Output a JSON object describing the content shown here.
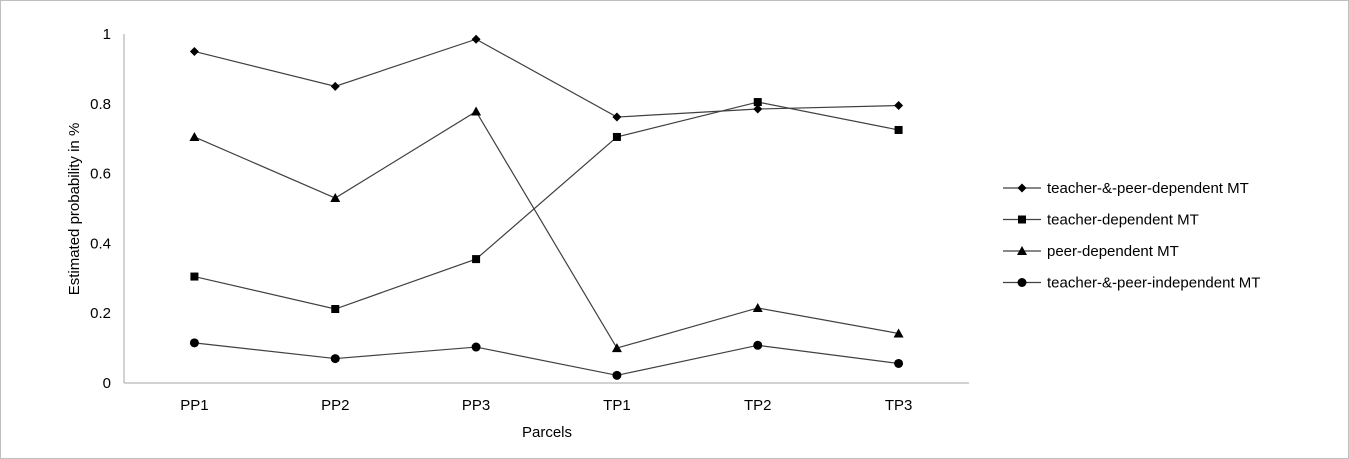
{
  "chart_data": {
    "type": "line",
    "title": "",
    "xlabel": "Parcels",
    "ylabel": "Estimated probability in %",
    "categories": [
      "PP1",
      "PP2",
      "PP3",
      "TP1",
      "TP2",
      "TP3"
    ],
    "ylim": [
      0,
      1
    ],
    "yticks": [
      "0",
      "0.2",
      "0.4",
      "0.6",
      "0.8",
      "1"
    ],
    "grid": false,
    "legend_position": "right",
    "line_color": "#404040",
    "marker_color": "#000000",
    "series": [
      {
        "name": "teacher-&-peer-dependent MT",
        "marker": "diamond",
        "values": [
          0.95,
          0.85,
          0.985,
          0.762,
          0.785,
          0.795
        ]
      },
      {
        "name": "teacher-dependent MT",
        "marker": "square",
        "values": [
          0.305,
          0.212,
          0.355,
          0.705,
          0.805,
          0.725
        ]
      },
      {
        "name": "peer-dependent MT",
        "marker": "triangle",
        "values": [
          0.705,
          0.53,
          0.778,
          0.1,
          0.215,
          0.142
        ]
      },
      {
        "name": "teacher-&-peer-independent MT",
        "marker": "circle",
        "values": [
          0.115,
          0.07,
          0.103,
          0.022,
          0.108,
          0.056
        ]
      }
    ]
  }
}
